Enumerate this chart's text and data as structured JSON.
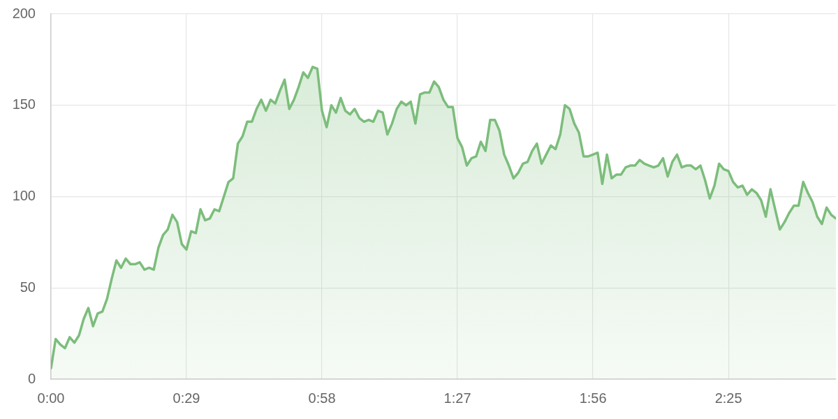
{
  "chart_data": {
    "type": "area",
    "x": [
      0,
      1,
      2,
      3,
      4,
      5,
      6,
      7,
      8,
      9,
      10,
      11,
      12,
      13,
      14,
      15,
      16,
      17,
      18,
      19,
      20,
      21,
      22,
      23,
      24,
      25,
      26,
      27,
      28,
      29,
      30,
      31,
      32,
      33,
      34,
      35,
      36,
      37,
      38,
      39,
      40,
      41,
      42,
      43,
      44,
      45,
      46,
      47,
      48,
      49,
      50,
      51,
      52,
      53,
      54,
      55,
      56,
      57,
      58,
      59,
      60,
      61,
      62,
      63,
      64,
      65,
      66,
      67,
      68,
      69,
      70,
      71,
      72,
      73,
      74,
      75,
      76,
      77,
      78,
      79,
      80,
      81,
      82,
      83,
      84,
      85,
      86,
      87,
      88,
      89,
      90,
      91,
      92,
      93,
      94,
      95,
      96,
      97,
      98,
      99,
      100,
      101,
      102,
      103,
      104,
      105,
      106,
      107,
      108,
      109,
      110,
      111,
      112,
      113,
      114,
      115,
      116,
      117,
      118,
      119,
      120,
      121,
      122,
      123,
      124,
      125,
      126,
      127,
      128,
      129,
      130,
      131,
      132,
      133,
      134,
      135,
      136,
      137,
      138,
      139,
      140,
      141,
      142,
      143,
      144,
      145,
      146,
      147,
      148,
      149,
      150,
      151,
      152,
      153,
      154,
      155,
      156,
      157,
      158,
      159,
      160,
      161,
      162,
      163,
      164,
      165,
      166,
      167,
      168
    ],
    "values": [
      6,
      22,
      19,
      17,
      23,
      20,
      24,
      33,
      39,
      29,
      36,
      37,
      44,
      55,
      65,
      61,
      66,
      63,
      63,
      64,
      60,
      61,
      60,
      72,
      79,
      82,
      90,
      86,
      74,
      71,
      81,
      80,
      93,
      87,
      88,
      93,
      92,
      100,
      108,
      110,
      129,
      133,
      141,
      141,
      148,
      153,
      147,
      153,
      151,
      158,
      164,
      148,
      153,
      160,
      168,
      165,
      171,
      170,
      147,
      138,
      150,
      146,
      154,
      147,
      145,
      148,
      143,
      141,
      142,
      141,
      147,
      146,
      134,
      140,
      148,
      152,
      150,
      152,
      140,
      156,
      157,
      157,
      163,
      160,
      153,
      149,
      149,
      132,
      127,
      117,
      121,
      122,
      130,
      125,
      142,
      142,
      136,
      123,
      117,
      110,
      113,
      118,
      119,
      125,
      129,
      118,
      123,
      128,
      126,
      134,
      150,
      148,
      140,
      135,
      122,
      122,
      123,
      124,
      107,
      123,
      110,
      112,
      112,
      116,
      117,
      117,
      120,
      118,
      117,
      116,
      117,
      121,
      111,
      119,
      123,
      116,
      117,
      117,
      115,
      117,
      109,
      99,
      106,
      118,
      115,
      114,
      108,
      105,
      106,
      101,
      104,
      102,
      98,
      89,
      104,
      93,
      82,
      86,
      91,
      95,
      95,
      108,
      102,
      97,
      89,
      85,
      94,
      90,
      88
    ],
    "color": "#7cbd7c",
    "xlim": [
      0,
      168
    ],
    "xticks": [
      {
        "value": 0,
        "label": "0:00"
      },
      {
        "value": 29,
        "label": "0:29"
      },
      {
        "value": 58,
        "label": "0:58"
      },
      {
        "value": 87,
        "label": "1:27"
      },
      {
        "value": 116,
        "label": "1:56"
      },
      {
        "value": 145,
        "label": "2:25"
      }
    ],
    "ylim": [
      0,
      200
    ],
    "yticks": [
      0,
      50,
      100,
      150,
      200
    ],
    "grid": true,
    "legend": false,
    "marker": "none"
  }
}
